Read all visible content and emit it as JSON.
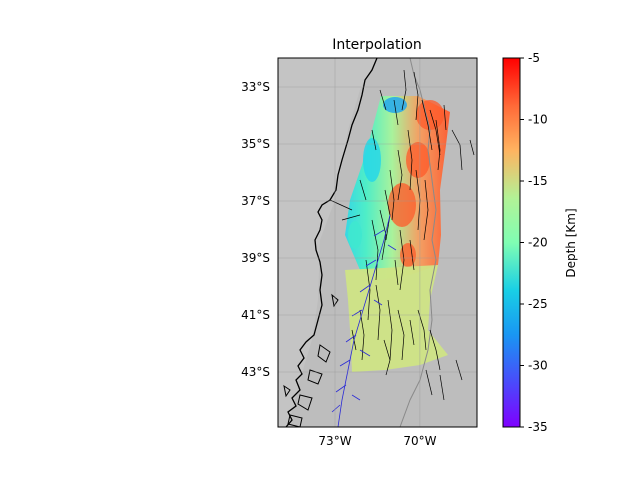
{
  "title": "Interpolation",
  "map": {
    "background_color": "#bdbdbd",
    "lat_labels": [
      "33°S",
      "35°S",
      "37°S",
      "39°S",
      "41°S",
      "43°S"
    ],
    "lat_values": [
      -33,
      -35,
      -37,
      -39,
      -41,
      -43
    ],
    "lon_labels": [
      "73°W",
      "70°W"
    ],
    "lon_values": [
      -73,
      -70
    ],
    "extent": {
      "lon_min": -75,
      "lon_max": -68,
      "lat_min": -45,
      "lat_max": -32
    },
    "coastline_color": "#000000",
    "fault_color": "#000000",
    "trench_fault_color": "#2b2bd6",
    "grid": true
  },
  "colorbar": {
    "label": "Depth [Km]",
    "ticks": [
      "-5",
      "-10",
      "-15",
      "-20",
      "-25",
      "-30",
      "-35"
    ],
    "tick_values": [
      -5,
      -10,
      -15,
      -20,
      -25,
      -30,
      -35
    ],
    "min": -35,
    "max": -5,
    "colormap": "rainbow"
  }
}
